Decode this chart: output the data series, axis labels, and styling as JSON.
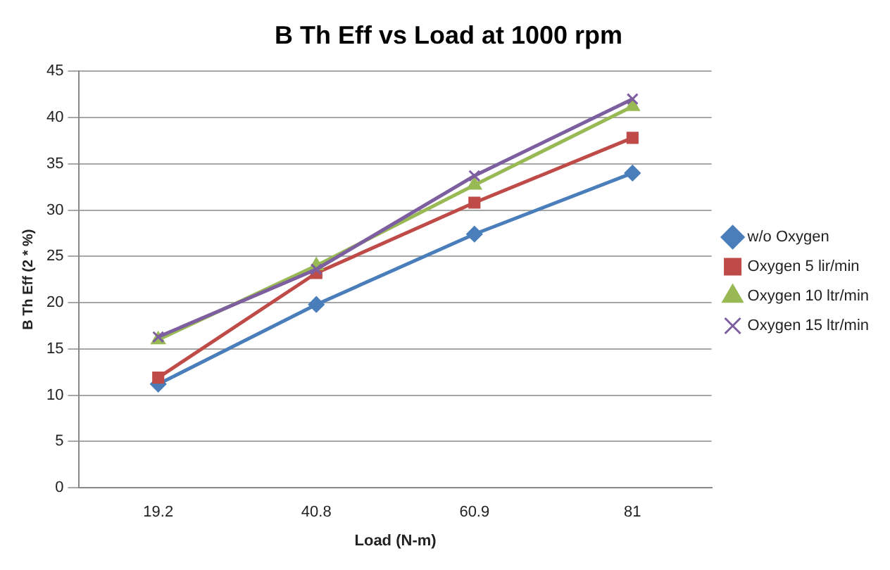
{
  "chart_data": {
    "type": "line",
    "title": "B Th Eff vs Load at 1000 rpm",
    "xlabel": "Load (N-m)",
    "ylabel": "B Th Eff (2 * %)",
    "categories": [
      "19.2",
      "40.8",
      "60.9",
      "81"
    ],
    "series": [
      {
        "name": "w/o Oxygen",
        "color": "#4a7ebb",
        "marker": "diamond",
        "values": [
          11.2,
          19.8,
          27.4,
          34
        ]
      },
      {
        "name": "Oxygen 5 lir/min",
        "color": "#be4b48",
        "marker": "square",
        "values": [
          11.9,
          23.2,
          30.8,
          37.8
        ]
      },
      {
        "name": "Oxygen 10 ltr/min",
        "color": "#98b954",
        "marker": "triangle",
        "values": [
          16,
          24,
          32.7,
          41.2
        ]
      },
      {
        "name": "Oxygen 15 ltr/min",
        "color": "#7d5fa0",
        "marker": "cross",
        "values": [
          16.3,
          23.6,
          33.7,
          42
        ]
      }
    ],
    "ylim": [
      0,
      45
    ],
    "yticks": [
      0,
      5,
      10,
      15,
      20,
      25,
      30,
      35,
      40,
      45
    ],
    "grid": "y",
    "legend": "right"
  }
}
